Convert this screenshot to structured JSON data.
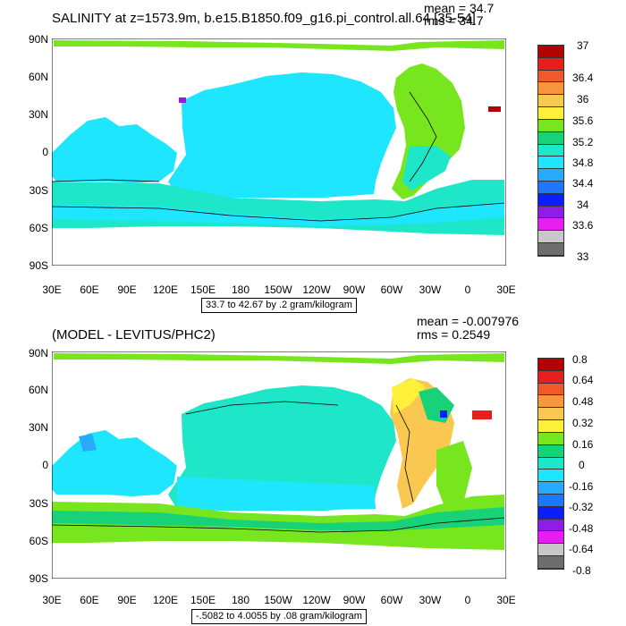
{
  "panels": [
    {
      "title": "SALINITY at z=1573.9m, b.e15.B1850.f09_g16.pi_control.all.64 [35-54]",
      "mean": "mean = 34.7",
      "rms": "rms = 34.7",
      "info": "33.7 to 42.67 by .2 gram/kilogram",
      "lat_labels": [
        "90N",
        "60N",
        "30N",
        "0",
        "30S",
        "60S",
        "90S"
      ],
      "lon_labels": [
        "30E",
        "60E",
        "90E",
        "120E",
        "150E",
        "180",
        "150W",
        "120W",
        "90W",
        "60W",
        "30W",
        "0",
        "30E"
      ],
      "colorbar_labels": [
        "37",
        "36.4",
        "36",
        "35.6",
        "35.2",
        "34.8",
        "34.4",
        "34",
        "33.6",
        "33"
      ],
      "colorbar_colors": [
        "#b40000",
        "#e61e1e",
        "#f05a2a",
        "#f8963c",
        "#fac850",
        "#fff03c",
        "#78e61e",
        "#18d27a",
        "#1ee6c8",
        "#1ee6ff",
        "#28aaff",
        "#1e78ff",
        "#0a1eff",
        "#8c1ee6",
        "#e61ef0",
        "#c8c8c8",
        "#6e6e6e"
      ]
    },
    {
      "title": "(MODEL - LEVITUS/PHC2)",
      "mean": "mean = -0.007976",
      "rms": "rms = 0.2549",
      "info": "-.5082 to 4.0055 by .08 gram/kilogram",
      "lat_labels": [
        "90N",
        "60N",
        "30N",
        "0",
        "30S",
        "60S",
        "90S"
      ],
      "lon_labels": [
        "30E",
        "60E",
        "90E",
        "120E",
        "150E",
        "180",
        "150W",
        "120W",
        "90W",
        "60W",
        "30W",
        "0",
        "30E"
      ],
      "colorbar_labels": [
        "0.8",
        "0.64",
        "0.48",
        "0.32",
        "0.16",
        "0",
        "-0.16",
        "-0.32",
        "-0.48",
        "-0.64",
        "-0.8"
      ],
      "colorbar_colors": [
        "#b40000",
        "#e61e1e",
        "#f05a2a",
        "#f8963c",
        "#fac850",
        "#fff03c",
        "#78e61e",
        "#18d27a",
        "#1ee6c8",
        "#1ee6ff",
        "#28aaff",
        "#1e78ff",
        "#0a1eff",
        "#8c1ee6",
        "#e61ef0",
        "#c8c8c8",
        "#6e6e6e"
      ]
    }
  ]
}
